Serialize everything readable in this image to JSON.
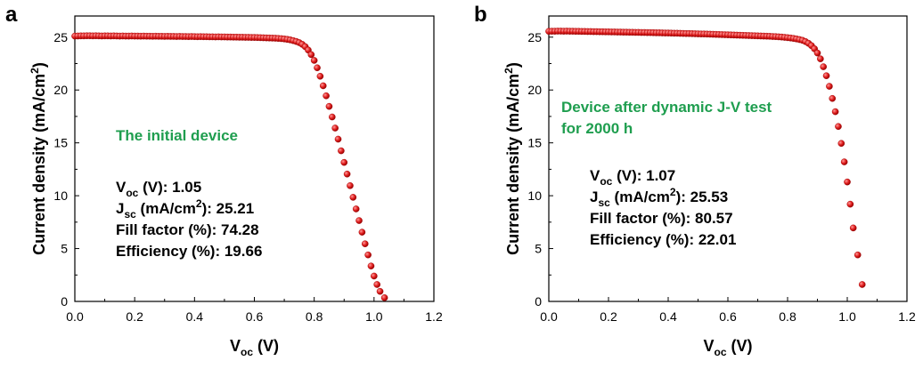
{
  "colors": {
    "marker": "#e32222",
    "marker_highlight": "#ff9a9a",
    "marker_edge": "#9a0000",
    "annotation_green": "#1f9e4f"
  },
  "chart_data": [
    {
      "type": "scatter",
      "panel": "a",
      "xlabel": {
        "main": "V",
        "sub": "oc",
        "unit": " (V)"
      },
      "ylabel": {
        "main": "Current density (mA/cm",
        "sup": "2",
        "end": ")"
      },
      "xlim": [
        0.0,
        1.2
      ],
      "ylim": [
        0,
        27
      ],
      "xticks": [
        "0.0",
        "0.2",
        "0.4",
        "0.6",
        "0.8",
        "1.0",
        "1.2"
      ],
      "yticks": [
        "0",
        "5",
        "10",
        "15",
        "20",
        "25"
      ],
      "annotation_title": [
        "The initial device"
      ],
      "metrics": [
        {
          "name": "V",
          "sub": "oc",
          "sup": "",
          "tail": " (V): 1.05"
        },
        {
          "name": "J",
          "sub": "sc",
          "sup": "2",
          "head": " (mA/cm",
          "tail": "): 25.21"
        },
        {
          "name": "Fill factor (%): 74.28",
          "sub": "",
          "sup": "",
          "tail": ""
        },
        {
          "name": "Efficiency (%): 19.66",
          "sub": "",
          "sup": "",
          "tail": ""
        }
      ],
      "series": [
        {
          "values": [
            [
              0.0,
              25.1
            ],
            [
              0.01,
              25.11
            ],
            [
              0.02,
              25.12
            ],
            [
              0.03,
              25.12
            ],
            [
              0.04,
              25.13
            ],
            [
              0.05,
              25.13
            ],
            [
              0.06,
              25.12
            ],
            [
              0.07,
              25.13
            ],
            [
              0.08,
              25.12
            ],
            [
              0.09,
              25.11
            ],
            [
              0.1,
              25.12
            ],
            [
              0.11,
              25.12
            ],
            [
              0.12,
              25.11
            ],
            [
              0.13,
              25.12
            ],
            [
              0.14,
              25.11
            ],
            [
              0.15,
              25.1
            ],
            [
              0.16,
              25.11
            ],
            [
              0.17,
              25.1
            ],
            [
              0.18,
              25.1
            ],
            [
              0.19,
              25.11
            ],
            [
              0.2,
              25.1
            ],
            [
              0.21,
              25.1
            ],
            [
              0.22,
              25.09
            ],
            [
              0.23,
              25.1
            ],
            [
              0.24,
              25.09
            ],
            [
              0.25,
              25.09
            ],
            [
              0.26,
              25.08
            ],
            [
              0.27,
              25.09
            ],
            [
              0.28,
              25.08
            ],
            [
              0.29,
              25.08
            ],
            [
              0.3,
              25.07
            ],
            [
              0.31,
              25.08
            ],
            [
              0.32,
              25.07
            ],
            [
              0.33,
              25.07
            ],
            [
              0.34,
              25.06
            ],
            [
              0.35,
              25.07
            ],
            [
              0.36,
              25.06
            ],
            [
              0.37,
              25.06
            ],
            [
              0.38,
              25.05
            ],
            [
              0.39,
              25.06
            ],
            [
              0.4,
              25.05
            ],
            [
              0.41,
              25.04
            ],
            [
              0.42,
              25.05
            ],
            [
              0.43,
              25.04
            ],
            [
              0.44,
              25.04
            ],
            [
              0.45,
              25.03
            ],
            [
              0.46,
              25.03
            ],
            [
              0.47,
              25.02
            ],
            [
              0.48,
              25.03
            ],
            [
              0.49,
              25.02
            ],
            [
              0.5,
              25.02
            ],
            [
              0.51,
              25.01
            ],
            [
              0.52,
              25.01
            ],
            [
              0.53,
              25.0
            ],
            [
              0.54,
              25.0
            ],
            [
              0.55,
              24.99
            ],
            [
              0.56,
              24.99
            ],
            [
              0.57,
              24.98
            ],
            [
              0.58,
              24.98
            ],
            [
              0.59,
              24.97
            ],
            [
              0.6,
              24.97
            ],
            [
              0.61,
              24.96
            ],
            [
              0.62,
              24.95
            ],
            [
              0.63,
              24.94
            ],
            [
              0.64,
              24.93
            ],
            [
              0.65,
              24.92
            ],
            [
              0.66,
              24.91
            ],
            [
              0.67,
              24.9
            ],
            [
              0.68,
              24.88
            ],
            [
              0.69,
              24.86
            ],
            [
              0.7,
              24.83
            ],
            [
              0.71,
              24.79
            ],
            [
              0.72,
              24.74
            ],
            [
              0.73,
              24.67
            ],
            [
              0.74,
              24.59
            ],
            [
              0.75,
              24.48
            ],
            [
              0.76,
              24.32
            ],
            [
              0.77,
              24.1
            ],
            [
              0.78,
              23.78
            ],
            [
              0.79,
              23.35
            ],
            [
              0.8,
              22.8
            ],
            [
              0.81,
              22.1
            ],
            [
              0.82,
              21.3
            ],
            [
              0.83,
              20.4
            ],
            [
              0.84,
              19.45
            ],
            [
              0.85,
              18.45
            ],
            [
              0.86,
              17.45
            ],
            [
              0.87,
              16.4
            ],
            [
              0.88,
              15.35
            ],
            [
              0.89,
              14.25
            ],
            [
              0.9,
              13.15
            ],
            [
              0.91,
              12.05
            ],
            [
              0.92,
              10.95
            ],
            [
              0.93,
              9.85
            ],
            [
              0.94,
              8.75
            ],
            [
              0.95,
              7.65
            ],
            [
              0.96,
              6.55
            ],
            [
              0.97,
              5.45
            ],
            [
              0.98,
              4.4
            ],
            [
              0.99,
              3.35
            ],
            [
              1.0,
              2.4
            ],
            [
              1.01,
              1.6
            ],
            [
              1.02,
              0.95
            ],
            [
              1.035,
              0.35
            ]
          ]
        }
      ]
    },
    {
      "type": "scatter",
      "panel": "b",
      "xlabel": {
        "main": "V",
        "sub": "oc",
        "unit": " (V)"
      },
      "ylabel": {
        "main": "Current density (mA/cm",
        "sup": "2",
        "end": ")"
      },
      "xlim": [
        0.0,
        1.2
      ],
      "ylim": [
        0,
        27
      ],
      "xticks": [
        "0.0",
        "0.2",
        "0.4",
        "0.6",
        "0.8",
        "1.0",
        "1.2"
      ],
      "yticks": [
        "0",
        "5",
        "10",
        "15",
        "20",
        "25"
      ],
      "annotation_title": [
        "Device after dynamic J-V test",
        "for  2000 h"
      ],
      "metrics": [
        {
          "name": "V",
          "sub": "oc",
          "sup": "",
          "tail": " (V): 1.07"
        },
        {
          "name": "J",
          "sub": "sc",
          "sup": "2",
          "head": " (mA/cm",
          "tail": "): 25.53"
        },
        {
          "name": "Fill factor (%): 80.57",
          "sub": "",
          "sup": "",
          "tail": ""
        },
        {
          "name": "Efficiency (%): 22.01",
          "sub": "",
          "sup": "",
          "tail": ""
        }
      ],
      "series": [
        {
          "values": [
            [
              0.0,
              25.55
            ],
            [
              0.01,
              25.56
            ],
            [
              0.02,
              25.56
            ],
            [
              0.03,
              25.57
            ],
            [
              0.04,
              25.57
            ],
            [
              0.05,
              25.56
            ],
            [
              0.06,
              25.57
            ],
            [
              0.07,
              25.56
            ],
            [
              0.08,
              25.56
            ],
            [
              0.09,
              25.55
            ],
            [
              0.1,
              25.55
            ],
            [
              0.11,
              25.54
            ],
            [
              0.12,
              25.54
            ],
            [
              0.13,
              25.53
            ],
            [
              0.14,
              25.53
            ],
            [
              0.15,
              25.52
            ],
            [
              0.16,
              25.52
            ],
            [
              0.17,
              25.51
            ],
            [
              0.18,
              25.51
            ],
            [
              0.19,
              25.5
            ],
            [
              0.2,
              25.5
            ],
            [
              0.21,
              25.49
            ],
            [
              0.22,
              25.49
            ],
            [
              0.23,
              25.48
            ],
            [
              0.24,
              25.48
            ],
            [
              0.25,
              25.47
            ],
            [
              0.26,
              25.47
            ],
            [
              0.27,
              25.46
            ],
            [
              0.28,
              25.46
            ],
            [
              0.29,
              25.45
            ],
            [
              0.3,
              25.45
            ],
            [
              0.31,
              25.44
            ],
            [
              0.32,
              25.44
            ],
            [
              0.33,
              25.43
            ],
            [
              0.34,
              25.43
            ],
            [
              0.35,
              25.42
            ],
            [
              0.36,
              25.41
            ],
            [
              0.37,
              25.41
            ],
            [
              0.38,
              25.4
            ],
            [
              0.39,
              25.39
            ],
            [
              0.4,
              25.39
            ],
            [
              0.41,
              25.38
            ],
            [
              0.42,
              25.37
            ],
            [
              0.43,
              25.37
            ],
            [
              0.44,
              25.36
            ],
            [
              0.45,
              25.35
            ],
            [
              0.46,
              25.34
            ],
            [
              0.47,
              25.34
            ],
            [
              0.48,
              25.33
            ],
            [
              0.49,
              25.32
            ],
            [
              0.5,
              25.31
            ],
            [
              0.51,
              25.3
            ],
            [
              0.52,
              25.3
            ],
            [
              0.53,
              25.29
            ],
            [
              0.54,
              25.28
            ],
            [
              0.55,
              25.27
            ],
            [
              0.56,
              25.26
            ],
            [
              0.57,
              25.25
            ],
            [
              0.58,
              25.24
            ],
            [
              0.59,
              25.23
            ],
            [
              0.6,
              25.22
            ],
            [
              0.61,
              25.21
            ],
            [
              0.62,
              25.2
            ],
            [
              0.63,
              25.19
            ],
            [
              0.64,
              25.18
            ],
            [
              0.65,
              25.17
            ],
            [
              0.66,
              25.16
            ],
            [
              0.67,
              25.15
            ],
            [
              0.68,
              25.14
            ],
            [
              0.69,
              25.13
            ],
            [
              0.7,
              25.12
            ],
            [
              0.71,
              25.11
            ],
            [
              0.72,
              25.1
            ],
            [
              0.73,
              25.09
            ],
            [
              0.74,
              25.08
            ],
            [
              0.75,
              25.06
            ],
            [
              0.76,
              25.05
            ],
            [
              0.77,
              25.03
            ],
            [
              0.78,
              25.01
            ],
            [
              0.79,
              24.98
            ],
            [
              0.8,
              24.95
            ],
            [
              0.81,
              24.92
            ],
            [
              0.82,
              24.88
            ],
            [
              0.83,
              24.83
            ],
            [
              0.84,
              24.77
            ],
            [
              0.85,
              24.7
            ],
            [
              0.86,
              24.58
            ],
            [
              0.87,
              24.42
            ],
            [
              0.88,
              24.2
            ],
            [
              0.89,
              23.9
            ],
            [
              0.9,
              23.5
            ],
            [
              0.91,
              22.95
            ],
            [
              0.92,
              22.2
            ],
            [
              0.93,
              21.35
            ],
            [
              0.94,
              20.35
            ],
            [
              0.95,
              19.2
            ],
            [
              0.96,
              17.95
            ],
            [
              0.97,
              16.55
            ],
            [
              0.98,
              14.95
            ],
            [
              0.99,
              13.2
            ],
            [
              1.0,
              11.3
            ],
            [
              1.01,
              9.2
            ],
            [
              1.02,
              6.95
            ],
            [
              1.035,
              4.4
            ],
            [
              1.05,
              1.6
            ]
          ]
        }
      ]
    }
  ]
}
